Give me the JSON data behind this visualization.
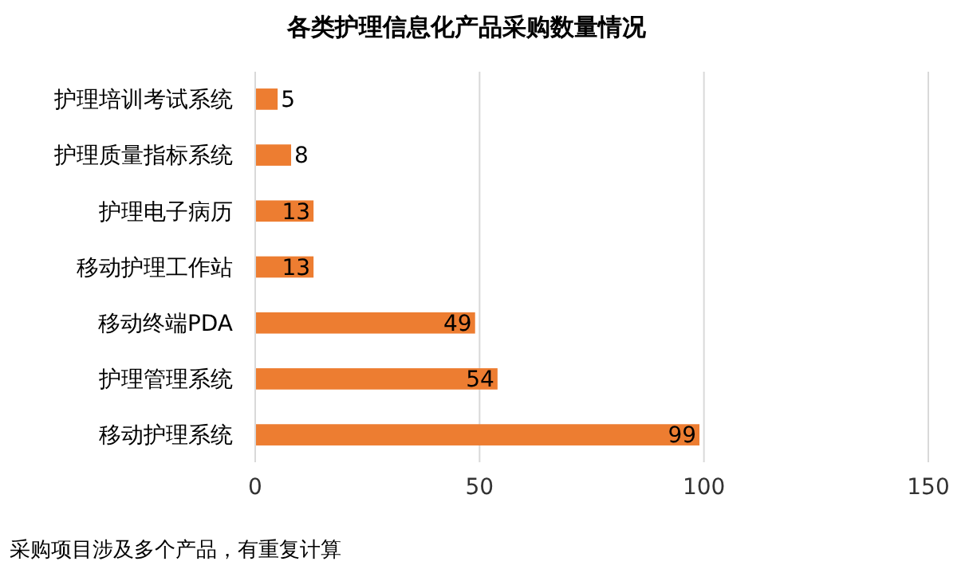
{
  "chart_data": {
    "type": "bar",
    "orientation": "horizontal",
    "title": "各类护理信息化产品采购数量情况",
    "categories": [
      "护理培训考试系统",
      "护理质量指标系统",
      "护理电子病历",
      "移动护理工作站",
      "移动终端PDA",
      "护理管理系统",
      "移动护理系统"
    ],
    "values": [
      5,
      8,
      13,
      13,
      49,
      54,
      99
    ],
    "color": "#ed7d31",
    "xlim": [
      0,
      150
    ],
    "xticks": [
      0,
      50,
      100,
      150
    ],
    "grid": "x",
    "data_labels": true,
    "annotations": [
      "采购项目涉及多个产品，有重复计算"
    ]
  }
}
